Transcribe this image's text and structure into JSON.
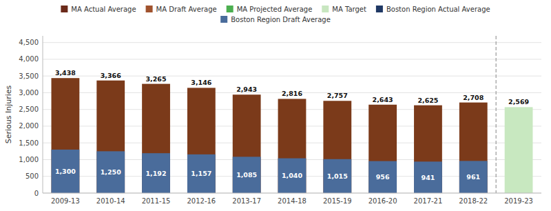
{
  "chart_data": {
    "type": "bar",
    "ylabel": "Serious Injuries",
    "categories": [
      "2009-13",
      "2010-14",
      "2011-15",
      "2012-16",
      "2013-17",
      "2014-18",
      "2015-19",
      "2016-20",
      "2017-21",
      "2018-22",
      "2019-23"
    ],
    "series": [
      {
        "colors": [
          "#7B3A1A",
          "#7B3A1A",
          "#7B3A1A",
          "#7B3A1A",
          "#7B3A1A",
          "#7B3A1A",
          "#7B3A1A",
          "#7B3A1A",
          "#7B3A1A",
          "#7B3A1A",
          "#C8E8C0"
        ],
        "values": [
          3438,
          3366,
          3265,
          3146,
          2943,
          2816,
          2757,
          2643,
          2625,
          2708,
          2569
        ],
        "value_labels": [
          "3,438",
          "3,366",
          "3,265",
          "3,146",
          "2,943",
          "2,816",
          "2,757",
          "2,643",
          "2,625",
          "2,708",
          "2,569"
        ]
      },
      {
        "color": "#4A6C9B",
        "values": [
          1300,
          1250,
          1192,
          1157,
          1085,
          1040,
          1015,
          956,
          941,
          961,
          null
        ],
        "value_labels": [
          "1,300",
          "1,250",
          "1,192",
          "1,157",
          "1,085",
          "1,040",
          "1,015",
          "956",
          "941",
          "961",
          null
        ]
      }
    ],
    "ylim": [
      0,
      4700
    ],
    "yticks": [
      0,
      500,
      {
        "value": 1000,
        "label": "1,000"
      },
      {
        "value": 1500,
        "label": "1,500"
      },
      {
        "value": 2000,
        "label": "2,000"
      },
      {
        "value": 2500,
        "label": "2,500"
      },
      {
        "value": 3000,
        "label": "3,000"
      },
      {
        "value": 3500,
        "label": "3,500"
      },
      {
        "value": 4000,
        "label": "4,000"
      },
      {
        "value": 4500,
        "label": "4,500"
      }
    ],
    "grid": true,
    "data_labels": true,
    "legend": "top",
    "legend_entries": [
      {
        "label": "MA Actual Average",
        "color": "#6B2A1A"
      },
      {
        "label": "MA Draft Average",
        "color": "#A0522D"
      },
      {
        "label": "MA Projected Average",
        "color": "#4CAF50"
      },
      {
        "label": "MA Target",
        "color": "#C8E6C0"
      },
      {
        "label": "Boston Region Actual Average",
        "color": "#1F3864"
      },
      {
        "label": "Boston Region Draft Average",
        "color": "#4A6C9B"
      }
    ]
  }
}
